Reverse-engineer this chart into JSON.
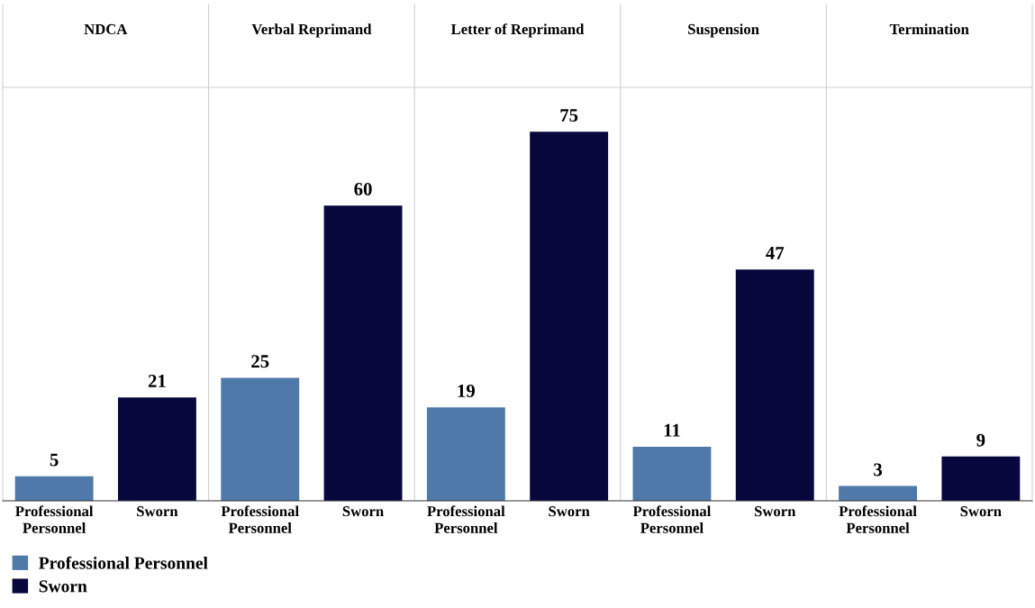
{
  "chart_data": {
    "type": "bar",
    "categories": [
      "NDCA",
      "Verbal Reprimand",
      "Letter of Reprimand",
      "Suspension",
      "Termination"
    ],
    "data_labels": true,
    "legend": "bottom",
    "series": [
      {
        "name": "Professional Personnel",
        "color": "#4e79a8",
        "values": [
          5,
          25,
          19,
          11,
          3
        ]
      },
      {
        "name": "Sworn",
        "color": "#07073e",
        "values": [
          21,
          60,
          75,
          47,
          9
        ]
      }
    ]
  }
}
